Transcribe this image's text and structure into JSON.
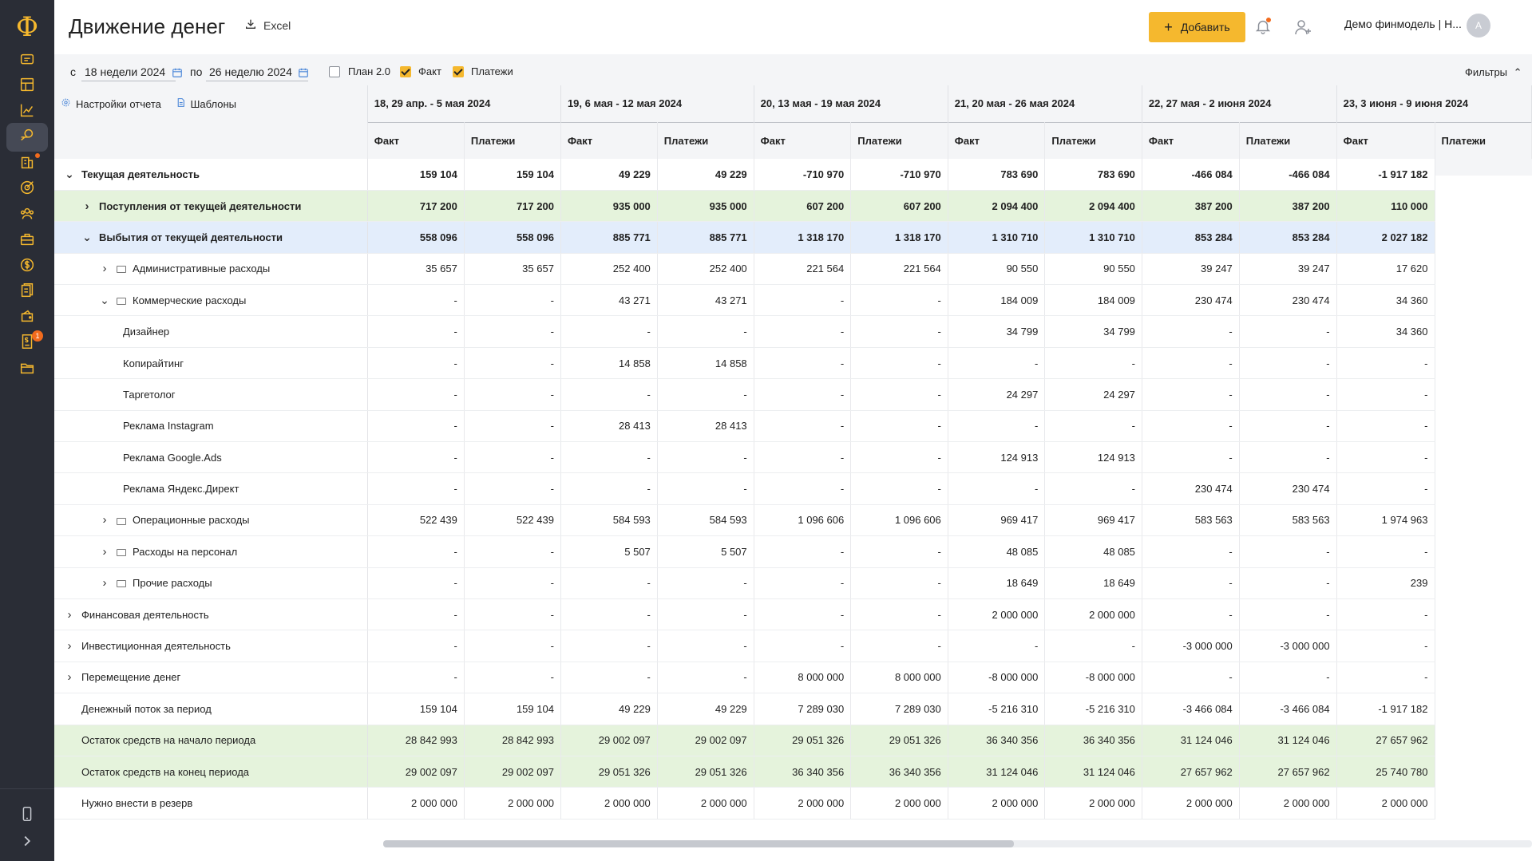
{
  "header": {
    "title": "Движение денег",
    "excel_label": "Excel",
    "add_label": "Добавить",
    "account_label": "Демо финмодель | Н...",
    "avatar_letter": "A",
    "accent_color": "#f5b82e"
  },
  "sidebar": {
    "logo": "Ф",
    "items": [
      {
        "icon": "chat-icon"
      },
      {
        "icon": "calendar-grid-icon"
      },
      {
        "icon": "bar-chart-icon"
      },
      {
        "icon": "money-flow-icon",
        "active": true
      },
      {
        "icon": "buildings-icon",
        "dot": true
      },
      {
        "icon": "target-icon"
      },
      {
        "icon": "people-icon"
      },
      {
        "icon": "briefcase-icon"
      },
      {
        "icon": "dollar-icon"
      },
      {
        "icon": "documents-icon"
      },
      {
        "icon": "wallet-icon"
      },
      {
        "icon": "invoice-icon",
        "badge": "1"
      },
      {
        "icon": "folder-icon"
      }
    ],
    "bottom": [
      {
        "icon": "mobile-icon"
      },
      {
        "icon": "expand-icon"
      }
    ]
  },
  "controls": {
    "from_prefix": "с",
    "from_value": "18 недели 2024",
    "to_prefix": "по",
    "to_value": "26 неделю 2024",
    "checkboxes": [
      {
        "label": "План 2.0",
        "checked": false
      },
      {
        "label": "Факт",
        "checked": true
      },
      {
        "label": "Платежи",
        "checked": true
      }
    ],
    "filters_label": "Фильтры",
    "report_settings_label": "Настройки отчета",
    "templates_label": "Шаблоны"
  },
  "table": {
    "weeks": [
      "18, 29 апр. - 5 мая 2024",
      "19, 6 мая - 12 мая 2024",
      "20, 13 мая - 19 мая 2024",
      "21, 20 мая - 26 мая 2024",
      "22, 27 мая - 2 июня 2024",
      "23, 3 июня - 9 июня 2024"
    ],
    "sub_headers": [
      "Факт",
      "Платежи"
    ],
    "rows": [
      {
        "label": "Текущая деятельность",
        "level": 0,
        "chevron": "down",
        "style": "bold white",
        "values": [
          "159 104",
          "159 104",
          "49 229",
          "49 229",
          "-710 970",
          "-710 970",
          "783 690",
          "783 690",
          "-466 084",
          "-466 084",
          "-1 917 182"
        ]
      },
      {
        "label": "Поступления от текущей деятельности",
        "level": 1,
        "chevron": "right",
        "style": "bold green",
        "values": [
          "717 200",
          "717 200",
          "935 000",
          "935 000",
          "607 200",
          "607 200",
          "2 094 400",
          "2 094 400",
          "387 200",
          "387 200",
          "110 000"
        ]
      },
      {
        "label": "Выбытия от текущей деятельности",
        "level": 1,
        "chevron": "down",
        "style": "bold blue",
        "values": [
          "558 096",
          "558 096",
          "885 771",
          "885 771",
          "1 318 170",
          "1 318 170",
          "1 310 710",
          "1 310 710",
          "853 284",
          "853 284",
          "2 027 182"
        ]
      },
      {
        "label": "Административные расходы",
        "level": 2,
        "chevron": "right",
        "folder": true,
        "style": "white",
        "values": [
          "35 657",
          "35 657",
          "252 400",
          "252 400",
          "221 564",
          "221 564",
          "90 550",
          "90 550",
          "39 247",
          "39 247",
          "17 620"
        ]
      },
      {
        "label": "Коммерческие расходы",
        "level": 2,
        "chevron": "down",
        "folder": true,
        "style": "white",
        "values": [
          "-",
          "-",
          "43 271",
          "43 271",
          "-",
          "-",
          "184 009",
          "184 009",
          "230 474",
          "230 474",
          "34 360"
        ]
      },
      {
        "label": "Дизайнер",
        "level": 3,
        "style": "white",
        "values": [
          "-",
          "-",
          "-",
          "-",
          "-",
          "-",
          "34 799",
          "34 799",
          "-",
          "-",
          "34 360"
        ]
      },
      {
        "label": "Копирайтинг",
        "level": 3,
        "style": "white",
        "values": [
          "-",
          "-",
          "14 858",
          "14 858",
          "-",
          "-",
          "-",
          "-",
          "-",
          "-",
          "-"
        ]
      },
      {
        "label": "Таргетолог",
        "level": 3,
        "style": "white",
        "values": [
          "-",
          "-",
          "-",
          "-",
          "-",
          "-",
          "24 297",
          "24 297",
          "-",
          "-",
          "-"
        ]
      },
      {
        "label": "Реклама Instagram",
        "level": 3,
        "style": "white",
        "values": [
          "-",
          "-",
          "28 413",
          "28 413",
          "-",
          "-",
          "-",
          "-",
          "-",
          "-",
          "-"
        ]
      },
      {
        "label": "Реклама Google.Ads",
        "level": 3,
        "style": "white",
        "values": [
          "-",
          "-",
          "-",
          "-",
          "-",
          "-",
          "124 913",
          "124 913",
          "-",
          "-",
          "-"
        ]
      },
      {
        "label": "Реклама Яндекс.Директ",
        "level": 3,
        "style": "white",
        "values": [
          "-",
          "-",
          "-",
          "-",
          "-",
          "-",
          "-",
          "-",
          "230 474",
          "230 474",
          "-"
        ]
      },
      {
        "label": "Операционные расходы",
        "level": 2,
        "chevron": "right",
        "folder": true,
        "style": "white",
        "values": [
          "522 439",
          "522 439",
          "584 593",
          "584 593",
          "1 096 606",
          "1 096 606",
          "969 417",
          "969 417",
          "583 563",
          "583 563",
          "1 974 963"
        ]
      },
      {
        "label": "Расходы на персонал",
        "level": 2,
        "chevron": "right",
        "folder": true,
        "style": "white",
        "values": [
          "-",
          "-",
          "5 507",
          "5 507",
          "-",
          "-",
          "48 085",
          "48 085",
          "-",
          "-",
          "-"
        ]
      },
      {
        "label": "Прочие расходы",
        "level": 2,
        "chevron": "right",
        "folder": true,
        "style": "white",
        "values": [
          "-",
          "-",
          "-",
          "-",
          "-",
          "-",
          "18 649",
          "18 649",
          "-",
          "-",
          "239"
        ]
      },
      {
        "label": "Финансовая деятельность",
        "level": 0,
        "chevron": "right",
        "style": "white",
        "values": [
          "-",
          "-",
          "-",
          "-",
          "-",
          "-",
          "2 000 000",
          "2 000 000",
          "-",
          "-",
          "-"
        ]
      },
      {
        "label": "Инвестиционная деятельность",
        "level": 0,
        "chevron": "right",
        "style": "white",
        "values": [
          "-",
          "-",
          "-",
          "-",
          "-",
          "-",
          "-",
          "-",
          "-3 000 000",
          "-3 000 000",
          "-"
        ]
      },
      {
        "label": "Перемещение денег",
        "level": 0,
        "chevron": "right",
        "style": "white",
        "values": [
          "-",
          "-",
          "-",
          "-",
          "8 000 000",
          "8 000 000",
          "-8 000 000",
          "-8 000 000",
          "-",
          "-",
          "-"
        ]
      },
      {
        "label": "Денежный поток за период",
        "level": 0,
        "style": "white",
        "negative_highlight": true,
        "values": [
          "159 104",
          "159 104",
          "49 229",
          "49 229",
          "7 289 030",
          "7 289 030",
          "-5 216 310",
          "-5 216 310",
          "-3 466 084",
          "-3 466 084",
          "-1 917 182"
        ]
      },
      {
        "label": "Остаток средств на начало периода",
        "level": 0,
        "style": "green",
        "values": [
          "28 842 993",
          "28 842 993",
          "29 002 097",
          "29 002 097",
          "29 051 326",
          "29 051 326",
          "36 340 356",
          "36 340 356",
          "31 124 046",
          "31 124 046",
          "27 657 962"
        ]
      },
      {
        "label": "Остаток средств на конец периода",
        "level": 0,
        "style": "green",
        "values": [
          "29 002 097",
          "29 002 097",
          "29 051 326",
          "29 051 326",
          "36 340 356",
          "36 340 356",
          "31 124 046",
          "31 124 046",
          "27 657 962",
          "27 657 962",
          "25 740 780"
        ]
      },
      {
        "label": "Нужно внести в резерв",
        "level": 0,
        "style": "white",
        "values": [
          "2 000 000",
          "2 000 000",
          "2 000 000",
          "2 000 000",
          "2 000 000",
          "2 000 000",
          "2 000 000",
          "2 000 000",
          "2 000 000",
          "2 000 000",
          "2 000 000"
        ]
      }
    ]
  }
}
